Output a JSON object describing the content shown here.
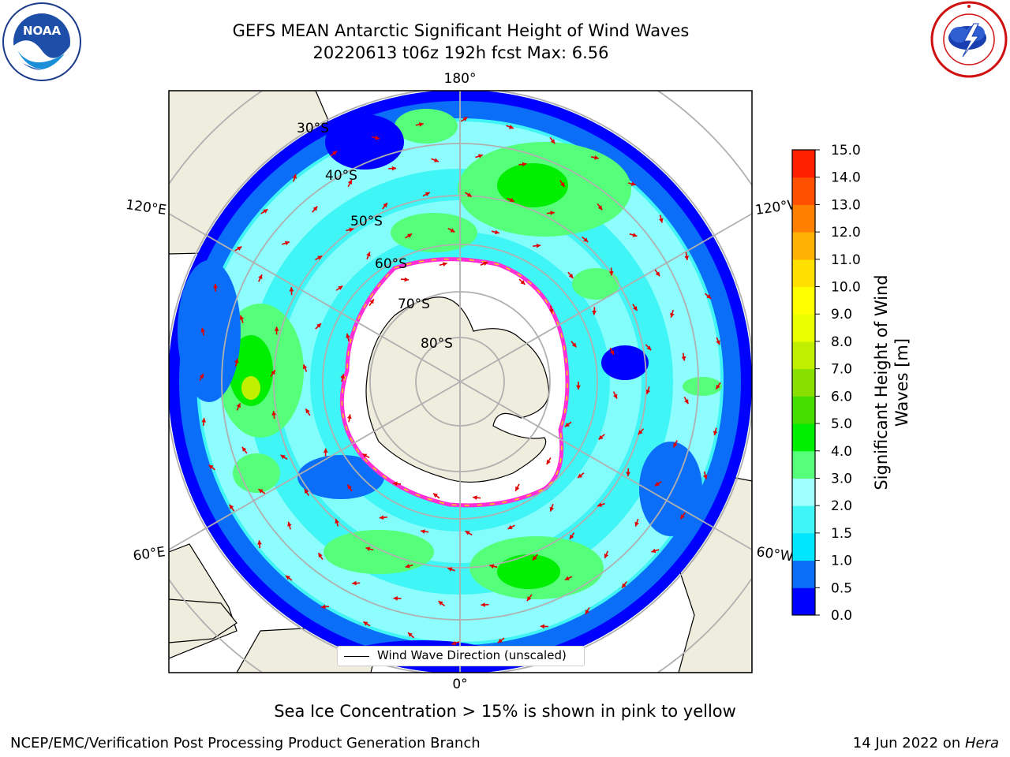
{
  "title_line1": "GEFS MEAN Antarctic Significant Height of Wind Waves",
  "title_line2": "20220613 t06z 192h fcst   Max: 6.56",
  "map": {
    "longitude_labels": [
      "180°",
      "120°E",
      "120°W",
      "60°E",
      "60°W",
      "0°"
    ],
    "latitude_labels": [
      "30°S",
      "40°S",
      "50°S",
      "60°S",
      "70°S",
      "80°S"
    ],
    "legend_text": "Wind Wave Direction (unscaled)"
  },
  "colorbar": {
    "label": "Significant Height of Wind Waves [m]",
    "ticks": [
      "0.0",
      "0.5",
      "1.0",
      "1.5",
      "2.0",
      "3.0",
      "4.0",
      "5.0",
      "6.0",
      "7.0",
      "8.0",
      "9.0",
      "10.0",
      "11.0",
      "12.0",
      "13.0",
      "14.0",
      "15.0"
    ],
    "colors": [
      "#0000ff",
      "#0a6ef8",
      "#00e6ff",
      "#40f5f5",
      "#a0ffff",
      "#55ff7a",
      "#00ee00",
      "#44dd00",
      "#88e000",
      "#c0f000",
      "#eaff00",
      "#ffff00",
      "#ffe000",
      "#ffb000",
      "#ff8000",
      "#ff5000",
      "#ff2000",
      "#ff0000"
    ]
  },
  "sea_ice_note": "Sea Ice Concentration > 15% is shown in pink to yellow",
  "footer_left": "NCEP/EMC/Verification Post Processing Product Generation Branch",
  "footer_right_prefix": "14 Jun 2022 on ",
  "footer_right_host": "Hera",
  "logos": {
    "noaa_text": "NOAA",
    "nws_text": "NATIONAL WEATHER SERVICE"
  }
}
